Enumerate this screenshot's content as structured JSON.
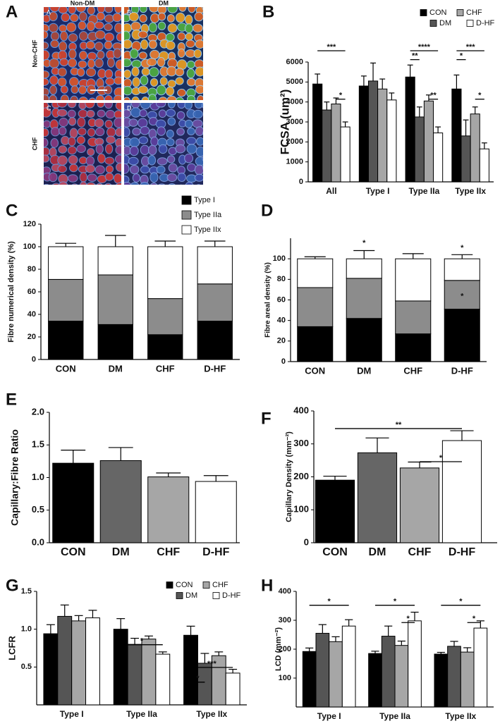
{
  "figure": {
    "label": "A",
    "columns": [
      "Non-DM",
      "DM"
    ],
    "rows": [
      "Non-CHF",
      "CHF"
    ],
    "images": [
      "A",
      "B",
      "C",
      "D"
    ]
  },
  "chart_data": [
    {
      "type": "bar",
      "label": "B",
      "y_label": "FCSA (um²)",
      "categories": [
        "All",
        "Type I",
        "Type IIa",
        "Type IIx"
      ],
      "series": [
        {
          "name": "CON",
          "color": "#000000",
          "values": [
            4900,
            4800,
            5250,
            4650
          ],
          "errors": [
            500,
            500,
            600,
            700
          ]
        },
        {
          "name": "DM",
          "color": "#555555",
          "values": [
            3600,
            5050,
            3250,
            2300
          ],
          "errors": [
            400,
            900,
            500,
            800
          ]
        },
        {
          "name": "CHF",
          "color": "#a6a6a6",
          "values": [
            3900,
            4650,
            4050,
            3400
          ],
          "errors": [
            300,
            500,
            300,
            350
          ]
        },
        {
          "name": "D-HF",
          "color": "#ffffff",
          "values": [
            2750,
            4100,
            2450,
            1650
          ],
          "errors": [
            250,
            350,
            300,
            300
          ]
        }
      ],
      "ylim": [
        0,
        6000
      ],
      "yticks": [
        0,
        1000,
        2000,
        3000,
        4000,
        5000,
        6000
      ],
      "annotations": [
        "***",
        "*",
        "**",
        "****",
        "**",
        "*",
        "***",
        "*"
      ]
    },
    {
      "type": "stacked_bar",
      "label": "C",
      "y_label": "Fibre numerical density (%)",
      "categories": [
        "CON",
        "DM",
        "CHF",
        "D-HF"
      ],
      "series": [
        {
          "name": "Type I",
          "color": "#000000",
          "values": [
            34,
            31,
            22,
            34
          ],
          "errors": [
            2,
            9,
            3,
            5
          ]
        },
        {
          "name": "Type IIa",
          "color": "#8c8c8c",
          "values": [
            37,
            44,
            32,
            33
          ],
          "errors": [
            2,
            9,
            2,
            4
          ]
        },
        {
          "name": "Type IIx",
          "color": "#ffffff",
          "values": [
            29,
            25,
            46,
            33
          ],
          "errors": [
            3,
            10,
            5,
            5
          ]
        }
      ],
      "ylim": [
        0,
        120
      ],
      "yticks": [
        0,
        20,
        40,
        60,
        80,
        100,
        120
      ],
      "annotations": []
    },
    {
      "type": "stacked_bar",
      "label": "D",
      "y_label": "Fibre areal density (%)",
      "categories": [
        "CON",
        "DM",
        "CHF",
        "D-HF"
      ],
      "series": [
        {
          "name": "Type I",
          "color": "#000000",
          "values": [
            34,
            42,
            27,
            51
          ],
          "errors": [
            3,
            8,
            3,
            6
          ]
        },
        {
          "name": "Type IIa",
          "color": "#8c8c8c",
          "values": [
            38,
            39,
            32,
            28
          ],
          "errors": [
            4,
            6,
            3,
            4
          ]
        },
        {
          "name": "Type IIx",
          "color": "#ffffff",
          "values": [
            28,
            19,
            41,
            21
          ],
          "errors": [
            2,
            8,
            5,
            4
          ]
        }
      ],
      "ylim": [
        0,
        120
      ],
      "yticks": [
        0,
        20,
        40,
        60,
        80,
        100
      ],
      "annotations": [
        "*",
        "*",
        "*"
      ]
    },
    {
      "type": "bar",
      "label": "E",
      "y_label": "Capillary:Fibre Ratio",
      "categories": [
        "CON",
        "DM",
        "CHF",
        "D-HF"
      ],
      "values": [
        1.22,
        1.26,
        1.01,
        0.94
      ],
      "errors": [
        0.2,
        0.2,
        0.06,
        0.09
      ],
      "colors": [
        "#000000",
        "#666666",
        "#a6a6a6",
        "#ffffff"
      ],
      "ylim": [
        0,
        2
      ],
      "yticks": [
        {
          "value": 0,
          "label": "0.0"
        },
        0.5,
        {
          "value": 1,
          "label": "1.0"
        },
        1.5,
        {
          "value": 2,
          "label": "2.0"
        }
      ],
      "annotations": []
    },
    {
      "type": "bar",
      "label": "F",
      "y_label": "Capillary Density (mm⁻²)",
      "categories": [
        "CON",
        "DM",
        "CHF",
        "D-HF"
      ],
      "values": [
        190,
        273,
        227,
        310
      ],
      "errors": [
        12,
        45,
        18,
        30
      ],
      "colors": [
        "#000000",
        "#666666",
        "#a6a6a6",
        "#ffffff"
      ],
      "ylim": [
        0,
        400
      ],
      "yticks": [
        0,
        100,
        200,
        300,
        400
      ],
      "annotations": [
        "**",
        "*"
      ]
    },
    {
      "type": "bar",
      "label": "G",
      "y_label": "LCFR",
      "categories": [
        "Type I",
        "Type IIa",
        "Type IIx"
      ],
      "series": [
        {
          "name": "CON",
          "color": "#000000",
          "values": [
            0.94,
            1.0,
            0.92
          ],
          "errors": [
            0.12,
            0.14,
            0.12
          ]
        },
        {
          "name": "DM",
          "color": "#555555",
          "values": [
            1.17,
            0.8,
            0.55
          ],
          "errors": [
            0.15,
            0.08,
            0.13
          ]
        },
        {
          "name": "CHF",
          "color": "#a6a6a6",
          "values": [
            1.11,
            0.87,
            0.65
          ],
          "errors": [
            0.07,
            0.04,
            0.05
          ]
        },
        {
          "name": "D-HF",
          "color": "#ffffff",
          "values": [
            1.15,
            0.67,
            0.42
          ],
          "errors": [
            0.1,
            0.03,
            0.05
          ]
        }
      ],
      "ylim": [
        0,
        1.5
      ],
      "yticks": [
        0.5,
        {
          "value": 1,
          "label": "1.0"
        },
        1.5
      ],
      "annotations": [
        "*",
        "*",
        "***"
      ]
    },
    {
      "type": "bar",
      "label": "H",
      "y_label": "LCD (mm⁻²)",
      "categories": [
        "Type I",
        "Type IIa",
        "Type IIx"
      ],
      "series": [
        {
          "name": "CON",
          "color": "#000000",
          "values": [
            192,
            185,
            183
          ],
          "errors": [
            12,
            8,
            6
          ]
        },
        {
          "name": "DM",
          "color": "#555555",
          "values": [
            255,
            245,
            210
          ],
          "errors": [
            30,
            35,
            17
          ]
        },
        {
          "name": "CHF",
          "color": "#a6a6a6",
          "values": [
            226,
            213,
            190
          ],
          "errors": [
            17,
            15,
            15
          ]
        },
        {
          "name": "D-HF",
          "color": "#ffffff",
          "values": [
            280,
            298,
            273
          ],
          "errors": [
            22,
            30,
            25
          ]
        }
      ],
      "ylim": [
        0,
        400
      ],
      "yticks": [
        100,
        200,
        300,
        400
      ],
      "annotations": [
        "*",
        "*",
        "*",
        "*",
        "*"
      ]
    }
  ]
}
